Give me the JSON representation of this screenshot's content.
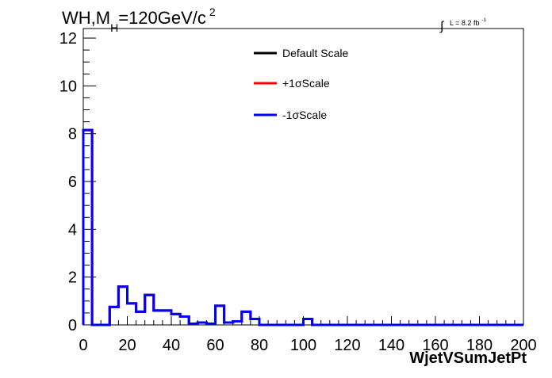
{
  "chart_data": {
    "type": "line",
    "title_parts": {
      "prefix": "WH,M",
      "subscript": "H",
      "value": "=120GeV/c",
      "superscript": "2"
    },
    "lumi": {
      "integral_symbol": "∫",
      "text": "L = 8.2 fb",
      "superscript": "-1"
    },
    "xlabel": "WjetVSumJetPt",
    "ylabel": "",
    "xlim": [
      0,
      200
    ],
    "ylim": [
      0,
      12.4
    ],
    "x_ticks": [
      "0",
      "20",
      "40",
      "60",
      "80",
      "100",
      "120",
      "140",
      "160",
      "180",
      "200"
    ],
    "y_ticks": [
      "0",
      "2",
      "4",
      "6",
      "8",
      "10",
      "12"
    ],
    "grid": false,
    "legend_position": "top-center",
    "bin_edges": [
      0,
      4,
      8,
      12,
      16,
      20,
      24,
      28,
      32,
      36,
      40,
      44,
      48,
      52,
      56,
      60,
      64,
      68,
      72,
      76,
      80,
      84,
      88,
      92,
      96,
      100,
      104,
      108,
      112,
      116,
      120,
      124,
      128,
      132,
      136,
      140,
      144,
      148,
      152,
      156,
      160,
      164,
      168,
      172,
      176,
      180,
      184,
      188,
      192,
      196,
      200
    ],
    "series": [
      {
        "name": "Default Scale",
        "color": "#000000",
        "values": [
          8.15,
          0,
          0,
          0.75,
          1.6,
          0.9,
          0.55,
          1.25,
          0.6,
          0.6,
          0.45,
          0.35,
          0.05,
          0.1,
          0.05,
          0.8,
          0.1,
          0.15,
          0.55,
          0.25,
          0,
          0,
          0,
          0,
          0,
          0.25,
          0,
          0,
          0,
          0,
          0,
          0,
          0,
          0,
          0,
          0,
          0,
          0,
          0,
          0,
          0,
          0,
          0,
          0,
          0,
          0,
          0,
          0,
          0,
          0
        ]
      },
      {
        "name": "+1σScale",
        "color": "#ff0000",
        "values": [
          8.15,
          0,
          0,
          0.75,
          1.6,
          0.9,
          0.55,
          1.25,
          0.6,
          0.6,
          0.45,
          0.35,
          0.05,
          0.1,
          0.05,
          0.8,
          0.1,
          0.15,
          0.55,
          0.25,
          0,
          0,
          0,
          0,
          0,
          0.25,
          0,
          0,
          0,
          0,
          0,
          0,
          0,
          0,
          0,
          0,
          0,
          0,
          0,
          0,
          0,
          0,
          0,
          0,
          0,
          0,
          0,
          0,
          0,
          0
        ]
      },
      {
        "name": "-1σScale",
        "color": "#0000ff",
        "values": [
          8.15,
          0,
          0,
          0.75,
          1.6,
          0.9,
          0.55,
          1.25,
          0.6,
          0.6,
          0.45,
          0.35,
          0.05,
          0.1,
          0.05,
          0.8,
          0.1,
          0.15,
          0.55,
          0.25,
          0,
          0,
          0,
          0,
          0,
          0.25,
          0,
          0,
          0,
          0,
          0,
          0,
          0,
          0,
          0,
          0,
          0,
          0,
          0,
          0,
          0,
          0,
          0,
          0,
          0,
          0,
          0,
          0,
          0,
          0
        ]
      }
    ]
  }
}
